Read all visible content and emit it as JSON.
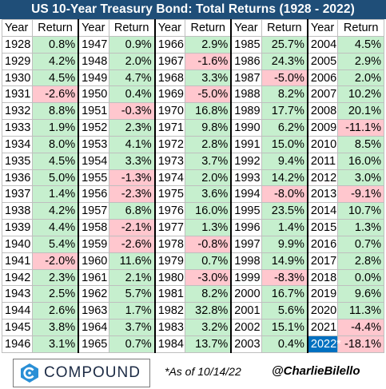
{
  "title": "US 10-Year Treasury Bond: Total Returns (1928 - 2022)",
  "headers": {
    "year": "Year",
    "return": "Return"
  },
  "footer": {
    "logo_text": "COMPOUND",
    "as_of": "*As of 10/14/22",
    "handle": "@CharlieBilello"
  },
  "colors": {
    "header_bg": "#1f4e78",
    "positive": "#c6efce",
    "negative": "#ffc7ce",
    "highlight": "#0070c0"
  },
  "chart_data": {
    "type": "table",
    "title": "US 10-Year Treasury Bond: Total Returns (1928 - 2022)",
    "columns": [
      {
        "rows": [
          {
            "year": "1928",
            "return": "0.8%"
          },
          {
            "year": "1929",
            "return": "4.2%"
          },
          {
            "year": "1930",
            "return": "4.5%"
          },
          {
            "year": "1931",
            "return": "-2.6%"
          },
          {
            "year": "1932",
            "return": "8.8%"
          },
          {
            "year": "1933",
            "return": "1.9%"
          },
          {
            "year": "1934",
            "return": "8.0%"
          },
          {
            "year": "1935",
            "return": "4.5%"
          },
          {
            "year": "1936",
            "return": "5.0%"
          },
          {
            "year": "1937",
            "return": "1.4%"
          },
          {
            "year": "1938",
            "return": "4.2%"
          },
          {
            "year": "1939",
            "return": "4.4%"
          },
          {
            "year": "1940",
            "return": "5.4%"
          },
          {
            "year": "1941",
            "return": "-2.0%"
          },
          {
            "year": "1942",
            "return": "2.3%"
          },
          {
            "year": "1943",
            "return": "2.5%"
          },
          {
            "year": "1944",
            "return": "2.6%"
          },
          {
            "year": "1945",
            "return": "3.8%"
          },
          {
            "year": "1946",
            "return": "3.1%"
          }
        ]
      },
      {
        "rows": [
          {
            "year": "1947",
            "return": "0.9%"
          },
          {
            "year": "1948",
            "return": "2.0%"
          },
          {
            "year": "1949",
            "return": "4.7%"
          },
          {
            "year": "1950",
            "return": "0.4%"
          },
          {
            "year": "1951",
            "return": "-0.3%"
          },
          {
            "year": "1952",
            "return": "2.3%"
          },
          {
            "year": "1953",
            "return": "4.1%"
          },
          {
            "year": "1954",
            "return": "3.3%"
          },
          {
            "year": "1955",
            "return": "-1.3%"
          },
          {
            "year": "1956",
            "return": "-2.3%"
          },
          {
            "year": "1957",
            "return": "6.8%"
          },
          {
            "year": "1958",
            "return": "-2.1%"
          },
          {
            "year": "1959",
            "return": "-2.6%"
          },
          {
            "year": "1960",
            "return": "11.6%"
          },
          {
            "year": "1961",
            "return": "2.1%"
          },
          {
            "year": "1962",
            "return": "5.7%"
          },
          {
            "year": "1963",
            "return": "1.7%"
          },
          {
            "year": "1964",
            "return": "3.7%"
          },
          {
            "year": "1965",
            "return": "0.7%"
          }
        ]
      },
      {
        "rows": [
          {
            "year": "1966",
            "return": "2.9%"
          },
          {
            "year": "1967",
            "return": "-1.6%"
          },
          {
            "year": "1968",
            "return": "3.3%"
          },
          {
            "year": "1969",
            "return": "-5.0%"
          },
          {
            "year": "1970",
            "return": "16.8%"
          },
          {
            "year": "1971",
            "return": "9.8%"
          },
          {
            "year": "1972",
            "return": "2.8%"
          },
          {
            "year": "1973",
            "return": "3.7%"
          },
          {
            "year": "1974",
            "return": "2.0%"
          },
          {
            "year": "1975",
            "return": "3.6%"
          },
          {
            "year": "1976",
            "return": "16.0%"
          },
          {
            "year": "1977",
            "return": "1.3%"
          },
          {
            "year": "1978",
            "return": "-0.8%"
          },
          {
            "year": "1979",
            "return": "0.7%"
          },
          {
            "year": "1980",
            "return": "-3.0%"
          },
          {
            "year": "1981",
            "return": "8.2%"
          },
          {
            "year": "1982",
            "return": "32.8%"
          },
          {
            "year": "1983",
            "return": "3.2%"
          },
          {
            "year": "1984",
            "return": "13.7%"
          }
        ]
      },
      {
        "rows": [
          {
            "year": "1985",
            "return": "25.7%"
          },
          {
            "year": "1986",
            "return": "24.3%"
          },
          {
            "year": "1987",
            "return": "-5.0%"
          },
          {
            "year": "1988",
            "return": "8.2%"
          },
          {
            "year": "1989",
            "return": "17.7%"
          },
          {
            "year": "1990",
            "return": "6.2%"
          },
          {
            "year": "1991",
            "return": "15.0%"
          },
          {
            "year": "1992",
            "return": "9.4%"
          },
          {
            "year": "1993",
            "return": "14.2%"
          },
          {
            "year": "1994",
            "return": "-8.0%"
          },
          {
            "year": "1995",
            "return": "23.5%"
          },
          {
            "year": "1996",
            "return": "1.4%"
          },
          {
            "year": "1997",
            "return": "9.9%"
          },
          {
            "year": "1998",
            "return": "14.9%"
          },
          {
            "year": "1999",
            "return": "-8.3%"
          },
          {
            "year": "2000",
            "return": "16.7%"
          },
          {
            "year": "2001",
            "return": "5.6%"
          },
          {
            "year": "2002",
            "return": "15.1%"
          },
          {
            "year": "2003",
            "return": "0.4%"
          }
        ]
      },
      {
        "rows": [
          {
            "year": "2004",
            "return": "4.5%"
          },
          {
            "year": "2005",
            "return": "2.9%"
          },
          {
            "year": "2006",
            "return": "2.0%"
          },
          {
            "year": "2007",
            "return": "10.2%"
          },
          {
            "year": "2008",
            "return": "20.1%"
          },
          {
            "year": "2009",
            "return": "-11.1%"
          },
          {
            "year": "2010",
            "return": "8.5%"
          },
          {
            "year": "2011",
            "return": "16.0%"
          },
          {
            "year": "2012",
            "return": "3.0%"
          },
          {
            "year": "2013",
            "return": "-9.1%"
          },
          {
            "year": "2014",
            "return": "10.7%"
          },
          {
            "year": "2015",
            "return": "1.3%"
          },
          {
            "year": "2016",
            "return": "0.7%"
          },
          {
            "year": "2017",
            "return": "2.8%"
          },
          {
            "year": "2018",
            "return": "0.0%"
          },
          {
            "year": "2019",
            "return": "9.6%"
          },
          {
            "year": "2020",
            "return": "11.3%"
          },
          {
            "year": "2021",
            "return": "-4.4%"
          },
          {
            "year": "2022*",
            "return": "-18.1%",
            "highlight_year": true
          }
        ]
      }
    ]
  }
}
